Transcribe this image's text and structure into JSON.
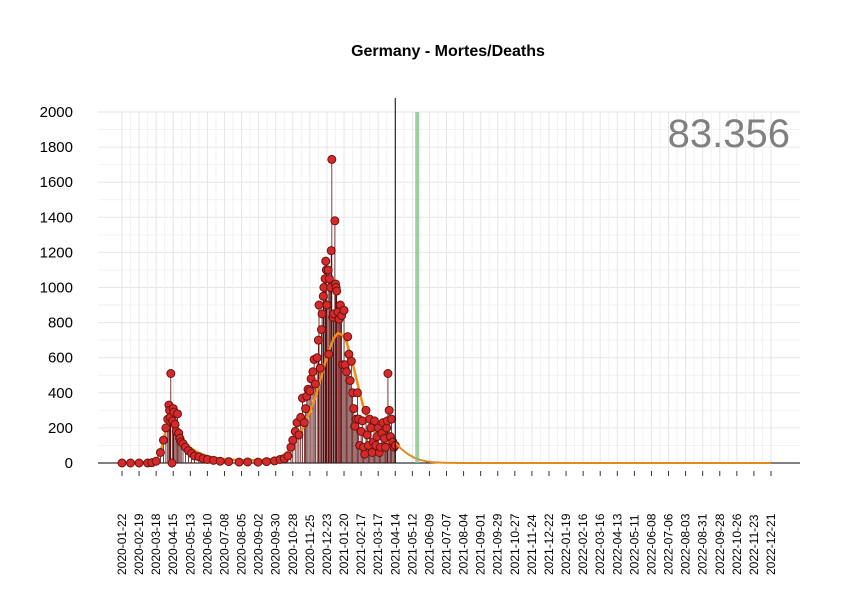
{
  "chart_data": {
    "type": "scatter",
    "title": "Germany - Mortes/Deaths",
    "total_label": "83.356",
    "ylim": [
      0,
      2000
    ],
    "y_ticks": [
      0,
      200,
      400,
      600,
      800,
      1000,
      1200,
      1400,
      1600,
      1800,
      2000
    ],
    "x_tick_labels": [
      "2020-01-22",
      "2020-02-19",
      "2020-03-18",
      "2020-04-15",
      "2020-05-13",
      "2020-06-10",
      "2020-07-08",
      "2020-08-05",
      "2020-09-02",
      "2020-09-30",
      "2020-10-28",
      "2020-11-25",
      "2020-12-23",
      "2021-01-20",
      "2021-02-17",
      "2021-03-17",
      "2021-04-14",
      "2021-05-12",
      "2021-06-09",
      "2021-07-07",
      "2021-08-04",
      "2021-09-01",
      "2021-09-29",
      "2021-10-27",
      "2021-11-24",
      "2021-12-22",
      "2022-01-19",
      "2022-02-16",
      "2022-03-16",
      "2022-04-13",
      "2022-05-11",
      "2022-06-08",
      "2022-07-06",
      "2022-08-03",
      "2022-08-31",
      "2022-09-28",
      "2022-10-26",
      "2022-11-23",
      "2022-12-21"
    ],
    "start_date": "2020-01-22",
    "end_date": "2022-12-21",
    "current_date": "2021-04-14",
    "projection_date": "2021-05-20",
    "highlight_range": [
      "2021-01-09",
      "2021-01-16"
    ],
    "daily_deaths_points": [
      [
        "2020-01-22",
        0
      ],
      [
        "2020-02-05",
        0
      ],
      [
        "2020-02-19",
        0
      ],
      [
        "2020-03-04",
        0
      ],
      [
        "2020-03-11",
        2
      ],
      [
        "2020-03-18",
        10
      ],
      [
        "2020-03-25",
        60
      ],
      [
        "2020-03-30",
        130
      ],
      [
        "2020-04-03",
        200
      ],
      [
        "2020-04-06",
        250
      ],
      [
        "2020-04-08",
        330
      ],
      [
        "2020-04-09",
        300
      ],
      [
        "2020-04-10",
        260
      ],
      [
        "2020-04-11",
        510
      ],
      [
        "2020-04-13",
        0
      ],
      [
        "2020-04-14",
        240
      ],
      [
        "2020-04-15",
        310
      ],
      [
        "2020-04-16",
        290
      ],
      [
        "2020-04-18",
        220
      ],
      [
        "2020-04-20",
        180
      ],
      [
        "2020-04-22",
        280
      ],
      [
        "2020-04-24",
        170
      ],
      [
        "2020-04-26",
        140
      ],
      [
        "2020-04-28",
        120
      ],
      [
        "2020-05-01",
        110
      ],
      [
        "2020-05-05",
        90
      ],
      [
        "2020-05-10",
        70
      ],
      [
        "2020-05-15",
        55
      ],
      [
        "2020-05-20",
        40
      ],
      [
        "2020-05-27",
        35
      ],
      [
        "2020-06-03",
        25
      ],
      [
        "2020-06-10",
        20
      ],
      [
        "2020-06-20",
        15
      ],
      [
        "2020-07-01",
        10
      ],
      [
        "2020-07-15",
        8
      ],
      [
        "2020-08-01",
        5
      ],
      [
        "2020-08-15",
        6
      ],
      [
        "2020-09-01",
        5
      ],
      [
        "2020-09-15",
        8
      ],
      [
        "2020-09-28",
        12
      ],
      [
        "2020-10-07",
        20
      ],
      [
        "2020-10-14",
        25
      ],
      [
        "2020-10-20",
        40
      ],
      [
        "2020-10-25",
        90
      ],
      [
        "2020-10-28",
        130
      ],
      [
        "2020-11-01",
        180
      ],
      [
        "2020-11-04",
        230
      ],
      [
        "2020-11-07",
        160
      ],
      [
        "2020-11-10",
        260
      ],
      [
        "2020-11-13",
        370
      ],
      [
        "2020-11-16",
        230
      ],
      [
        "2020-11-18",
        310
      ],
      [
        "2020-11-20",
        380
      ],
      [
        "2020-11-22",
        420
      ],
      [
        "2020-11-25",
        410
      ],
      [
        "2020-11-27",
        480
      ],
      [
        "2020-11-30",
        520
      ],
      [
        "2020-12-02",
        590
      ],
      [
        "2020-12-04",
        450
      ],
      [
        "2020-12-07",
        600
      ],
      [
        "2020-12-09",
        700
      ],
      [
        "2020-12-10",
        900
      ],
      [
        "2020-12-12",
        540
      ],
      [
        "2020-12-14",
        760
      ],
      [
        "2020-12-15",
        850
      ],
      [
        "2020-12-17",
        950
      ],
      [
        "2020-12-18",
        1000
      ],
      [
        "2020-12-20",
        1050
      ],
      [
        "2020-12-21",
        1150
      ],
      [
        "2020-12-22",
        1100
      ],
      [
        "2020-12-23",
        900
      ],
      [
        "2020-12-25",
        1100
      ],
      [
        "2020-12-26",
        620
      ],
      [
        "2020-12-27",
        1050
      ],
      [
        "2020-12-29",
        1000
      ],
      [
        "2020-12-30",
        1210
      ],
      [
        "2020-12-31",
        1730
      ],
      [
        "2021-01-02",
        830
      ],
      [
        "2021-01-03",
        850
      ],
      [
        "2021-01-05",
        1380
      ],
      [
        "2021-01-06",
        1020
      ],
      [
        "2021-01-07",
        1000
      ],
      [
        "2021-01-08",
        980
      ],
      [
        "2021-01-10",
        860
      ],
      [
        "2021-01-12",
        820
      ],
      [
        "2021-01-14",
        900
      ],
      [
        "2021-01-16",
        840
      ],
      [
        "2021-01-18",
        560
      ],
      [
        "2021-01-20",
        870
      ],
      [
        "2021-01-22",
        560
      ],
      [
        "2021-01-24",
        520
      ],
      [
        "2021-01-26",
        720
      ],
      [
        "2021-01-28",
        620
      ],
      [
        "2021-01-30",
        470
      ],
      [
        "2021-02-01",
        580
      ],
      [
        "2021-02-03",
        400
      ],
      [
        "2021-02-05",
        310
      ],
      [
        "2021-02-07",
        210
      ],
      [
        "2021-02-09",
        250
      ],
      [
        "2021-02-11",
        400
      ],
      [
        "2021-02-13",
        250
      ],
      [
        "2021-02-15",
        100
      ],
      [
        "2021-02-17",
        180
      ],
      [
        "2021-02-19",
        240
      ],
      [
        "2021-02-21",
        90
      ],
      [
        "2021-02-23",
        50
      ],
      [
        "2021-02-25",
        300
      ],
      [
        "2021-02-27",
        160
      ],
      [
        "2021-03-01",
        100
      ],
      [
        "2021-03-03",
        250
      ],
      [
        "2021-03-05",
        200
      ],
      [
        "2021-03-07",
        60
      ],
      [
        "2021-03-09",
        120
      ],
      [
        "2021-03-11",
        240
      ],
      [
        "2021-03-13",
        100
      ],
      [
        "2021-03-15",
        150
      ],
      [
        "2021-03-17",
        200
      ],
      [
        "2021-03-19",
        60
      ],
      [
        "2021-03-21",
        90
      ],
      [
        "2021-03-23",
        170
      ],
      [
        "2021-03-25",
        230
      ],
      [
        "2021-03-27",
        140
      ],
      [
        "2021-03-29",
        90
      ],
      [
        "2021-03-31",
        200
      ],
      [
        "2021-04-01",
        240
      ],
      [
        "2021-04-02",
        510
      ],
      [
        "2021-04-04",
        300
      ],
      [
        "2021-04-06",
        150
      ],
      [
        "2021-04-08",
        250
      ],
      [
        "2021-04-10",
        120
      ],
      [
        "2021-04-12",
        90
      ],
      [
        "2021-04-14",
        100
      ]
    ],
    "smoothed_points": [
      [
        "2020-01-22",
        0
      ],
      [
        "2020-03-11",
        3
      ],
      [
        "2020-03-20",
        25
      ],
      [
        "2020-03-28",
        100
      ],
      [
        "2020-04-03",
        190
      ],
      [
        "2020-04-09",
        260
      ],
      [
        "2020-04-14",
        285
      ],
      [
        "2020-04-18",
        250
      ],
      [
        "2020-04-24",
        180
      ],
      [
        "2020-05-01",
        130
      ],
      [
        "2020-05-10",
        95
      ],
      [
        "2020-05-20",
        70
      ],
      [
        "2020-06-01",
        50
      ],
      [
        "2020-06-15",
        35
      ],
      [
        "2020-07-01",
        25
      ],
      [
        "2020-07-20",
        18
      ],
      [
        "2020-08-10",
        15
      ],
      [
        "2020-09-01",
        16
      ],
      [
        "2020-09-20",
        20
      ],
      [
        "2020-10-05",
        30
      ],
      [
        "2020-10-15",
        50
      ],
      [
        "2020-10-25",
        85
      ],
      [
        "2020-11-05",
        140
      ],
      [
        "2020-11-15",
        210
      ],
      [
        "2020-11-25",
        290
      ],
      [
        "2020-12-05",
        390
      ],
      [
        "2020-12-15",
        510
      ],
      [
        "2020-12-25",
        630
      ],
      [
        "2021-01-03",
        710
      ],
      [
        "2021-01-10",
        740
      ],
      [
        "2021-01-17",
        730
      ],
      [
        "2021-01-24",
        690
      ],
      [
        "2021-02-01",
        600
      ],
      [
        "2021-02-10",
        470
      ],
      [
        "2021-02-20",
        330
      ],
      [
        "2021-03-01",
        240
      ],
      [
        "2021-03-10",
        180
      ],
      [
        "2021-03-20",
        140
      ],
      [
        "2021-04-01",
        120
      ],
      [
        "2021-04-14",
        115
      ]
    ],
    "projection_points": [
      [
        "2021-04-14",
        115
      ],
      [
        "2021-04-24",
        80
      ],
      [
        "2021-05-04",
        52
      ],
      [
        "2021-05-14",
        32
      ],
      [
        "2021-05-24",
        18
      ],
      [
        "2021-06-03",
        10
      ],
      [
        "2021-06-13",
        5
      ],
      [
        "2021-06-23",
        3
      ],
      [
        "2021-07-03",
        1
      ],
      [
        "2021-08-01",
        0
      ],
      [
        "2022-12-21",
        0
      ]
    ]
  }
}
